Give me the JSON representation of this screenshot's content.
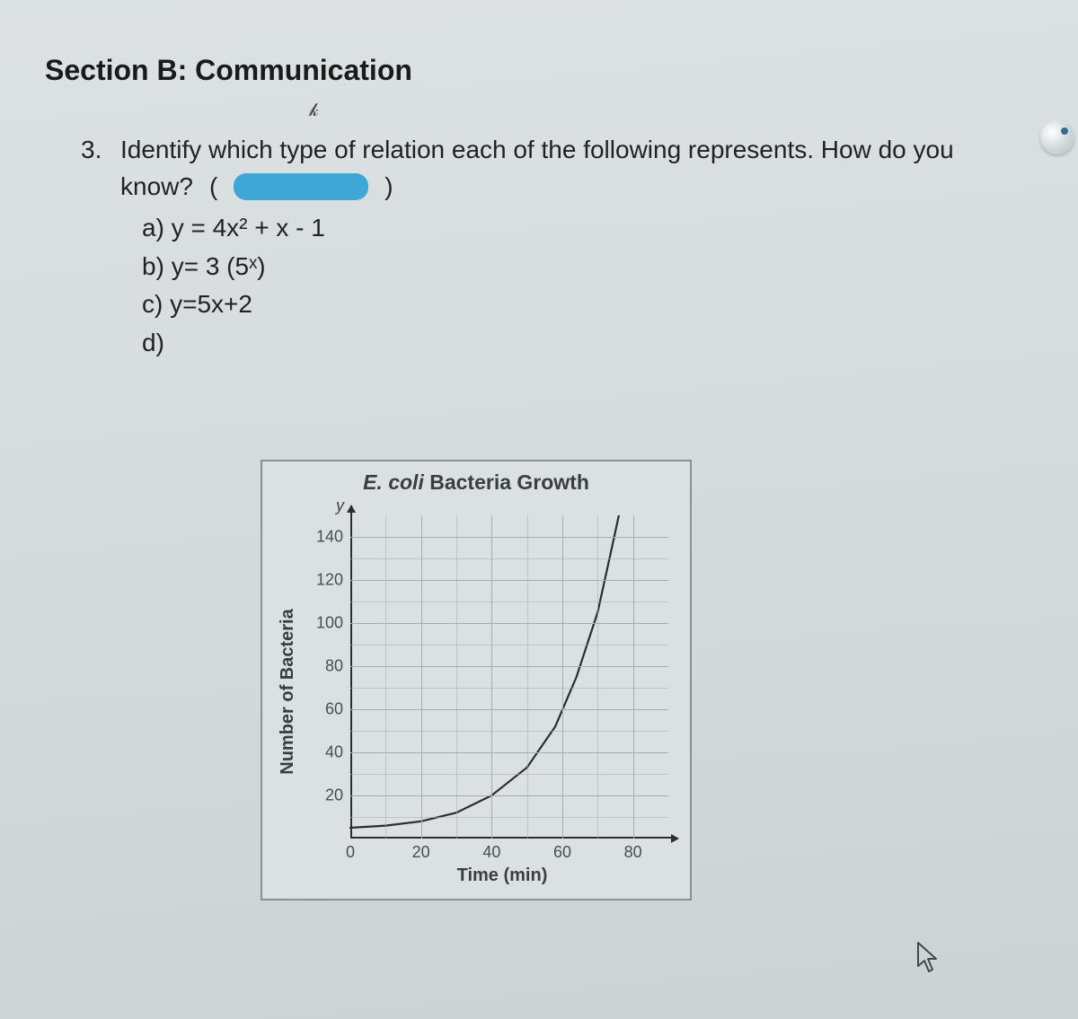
{
  "section_title": "Section B: Communication",
  "question": {
    "number": "3.",
    "prompt_line1": "Identify which type of relation each of the following represents. How do you",
    "prompt_line2": "know?",
    "paren_open": "(",
    "paren_close": ")",
    "items": {
      "a": {
        "label": "a)",
        "expr": "y = 4x² + x - 1"
      },
      "b": {
        "label": "b)",
        "expr": "y= 3 (5ˣ)"
      },
      "c": {
        "label": "c)",
        "expr": "y=5x+2"
      },
      "d": {
        "label": "d)",
        "expr": ""
      }
    }
  },
  "chart": {
    "type": "line",
    "title_prefix": "E. coli",
    "title_rest": " Bacteria Growth",
    "y_marker": "y",
    "ylabel": "Number of Bacteria",
    "xlabel": "Time (min)",
    "yticks": [
      20,
      40,
      60,
      80,
      100,
      120,
      140
    ],
    "xticks": [
      0,
      20,
      40,
      60,
      80
    ],
    "ylim": [
      0,
      150
    ],
    "xlim": [
      0,
      90
    ],
    "grid_color": "#a8adaf",
    "curve_color": "#2b2d2e",
    "curve_width": 2.2,
    "background": "#dbe0e1",
    "curve_points": [
      [
        0,
        5
      ],
      [
        10,
        6
      ],
      [
        20,
        8
      ],
      [
        30,
        12
      ],
      [
        40,
        20
      ],
      [
        50,
        33
      ],
      [
        58,
        52
      ],
      [
        64,
        75
      ],
      [
        70,
        105
      ],
      [
        74,
        135
      ],
      [
        76,
        150
      ]
    ]
  }
}
